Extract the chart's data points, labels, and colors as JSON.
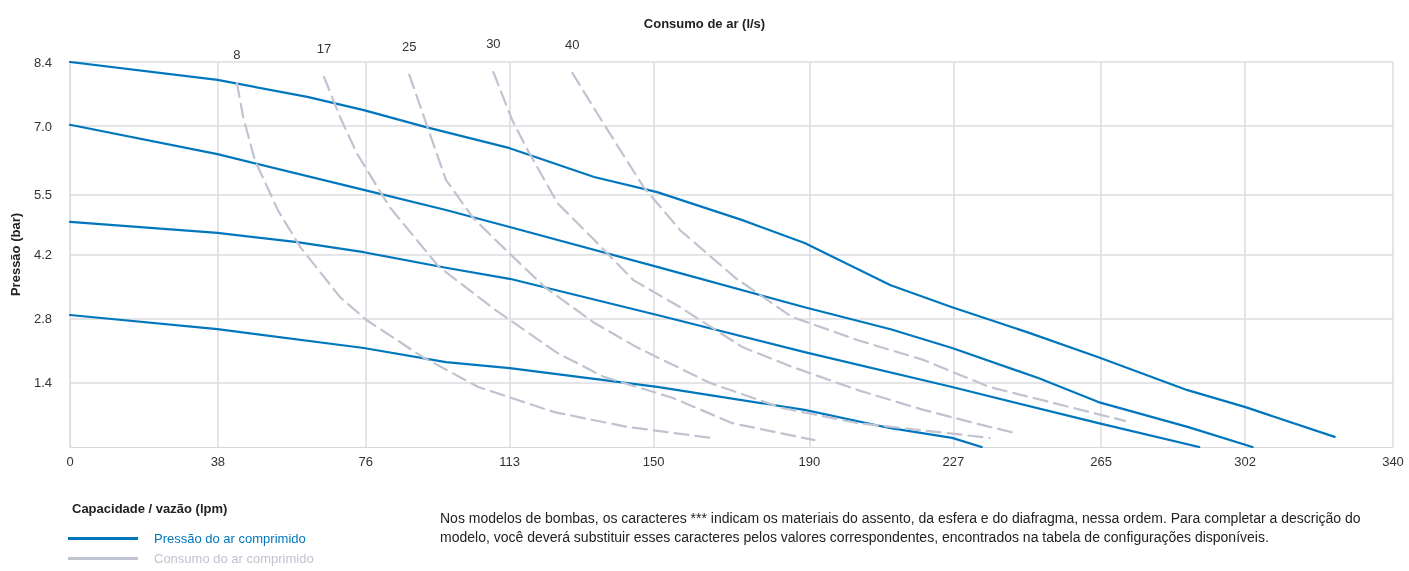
{
  "chart_data": {
    "type": "line",
    "title": "Consumo de ar (l/s)",
    "xlabel": "Capacidade / vazão (lpm)",
    "ylabel": "Pressão (bar)",
    "xlim": [
      0,
      340
    ],
    "xticks": [
      0,
      38,
      76,
      113,
      150,
      190,
      227,
      265,
      302,
      340
    ],
    "ylim": [
      0,
      8.4
    ],
    "yticks": [
      1.4,
      2.8,
      4.2,
      5.5,
      {
        "value": 7,
        "label": "7.0"
      },
      8.4
    ],
    "grid": true,
    "legend": "bottom left",
    "marker": "none",
    "series": [
      {
        "name": "Pressão do ar comprimido",
        "color": "#0077bd",
        "line_style": "solid",
        "x": [
          0,
          37.9,
          61,
          75.5,
          91.5,
          113,
          134.7,
          150.9,
          172.8,
          188.8,
          210.9,
          226.7,
          246.5,
          264.3,
          287.2,
          302.1,
          325
        ],
        "values": [
          8.4,
          8.01,
          7.64,
          7.35,
          6.98,
          6.52,
          5.89,
          5.56,
          4.95,
          4.45,
          3.53,
          3.05,
          2.49,
          1.96,
          1.24,
          0.87,
          0.22
        ]
      },
      {
        "color": "#0077bd",
        "line_style": "solid",
        "x": [
          0,
          37.9,
          75.5,
          96.6,
          113,
          150.9,
          188.8,
          210.9,
          226.7,
          249,
          264.3,
          287.2,
          303.9
        ],
        "values": [
          7.03,
          6.39,
          5.61,
          5.17,
          4.8,
          3.93,
          3.05,
          2.57,
          2.16,
          1.5,
          0.98,
          0.44,
          0
        ]
      },
      {
        "color": "#0077bd",
        "line_style": "solid",
        "x": [
          0,
          37.9,
          58.4,
          75.5,
          96.6,
          113,
          150.9,
          188.8,
          226.7,
          264.3,
          290.2
        ],
        "values": [
          4.91,
          4.67,
          4.47,
          4.25,
          3.91,
          3.67,
          2.88,
          2.07,
          1.31,
          0.52,
          0
        ]
      },
      {
        "color": "#0077bd",
        "line_style": "solid",
        "x": [
          0,
          37.9,
          75.5,
          96.6,
          113,
          150.9,
          188.8,
          210.9,
          226.7,
          234.3
        ],
        "values": [
          2.88,
          2.57,
          2.16,
          1.85,
          1.72,
          1.31,
          0.81,
          0.41,
          0.2,
          0
        ]
      },
      {
        "name": "Consumo do ar comprimido",
        "color": "#c0c3d0",
        "line_style": "dashed",
        "x": [
          42.9,
          44.5,
          47.5,
          53.4,
          59.2,
          69.4,
          76.2,
          90.7,
          104.9,
          124.5,
          143.1,
          164.7
        ],
        "values": [
          7.94,
          7.2,
          6.26,
          5.17,
          4.36,
          3.27,
          2.77,
          1.96,
          1.31,
          0.76,
          0.44,
          0.2
        ]
      },
      {
        "color": "#c0c3d0",
        "line_style": "dashed",
        "x": [
          65.3,
          69.4,
          73.7,
          82.1,
          94.8,
          109.3,
          125.3,
          137.2,
          155,
          170.2,
          191.3
        ],
        "values": [
          8.07,
          7.2,
          6.41,
          5.24,
          3.93,
          2.99,
          2.05,
          1.53,
          1.07,
          0.52,
          0.15
        ]
      },
      {
        "color": "#c0c3d0",
        "line_style": "dashed",
        "x": [
          87.2,
          91.5,
          96.6,
          103.4,
          109.3,
          122,
          134.7,
          145.6,
          164.4,
          183,
          202.5,
          236.3
        ],
        "values": [
          8.12,
          7.07,
          5.83,
          5.02,
          4.52,
          3.49,
          2.71,
          2.18,
          1.4,
          0.85,
          0.52,
          0.2
        ]
      },
      {
        "color": "#c0c3d0",
        "line_style": "dashed",
        "x": [
          108.8,
          113.6,
          117.6,
          125.3,
          134.7,
          144.8,
          156.8,
          172.8,
          185.5,
          202.5,
          219.3,
          236.3,
          242.7
        ],
        "values": [
          8.18,
          7.14,
          6.48,
          5.32,
          4.52,
          3.64,
          3.05,
          2.18,
          1.75,
          1.24,
          0.81,
          0.44,
          0.31
        ]
      },
      {
        "color": "#c0c3d0",
        "line_style": "dashed",
        "x": [
          129.1,
          136.5,
          147.4,
          156.8,
          171,
          185.5,
          202.5,
          219.3,
          236.3,
          271.1
        ],
        "values": [
          8.16,
          7.14,
          5.67,
          4.73,
          3.69,
          2.84,
          2.33,
          1.9,
          1.31,
          0.57
        ]
      }
    ],
    "annotations": [
      {
        "text": "8",
        "x": 42.9,
        "y": 7.94
      },
      {
        "text": "17",
        "x": 65.3,
        "y": 8.07
      },
      {
        "text": "25",
        "x": 87.2,
        "y": 8.12
      },
      {
        "text": "30",
        "x": 108.8,
        "y": 8.18
      },
      {
        "text": "40",
        "x": 129.1,
        "y": 8.16
      },
      "Nos modelos de bombas, os caracteres *** indicam os materiais do assento, da esfera e do diafragma, nessa ordem. Para completar a descrição do modelo, você deverá substituir esses caracteres pelos valores correspondentes, encontrados na tabela de configurações disponíveis."
    ]
  }
}
